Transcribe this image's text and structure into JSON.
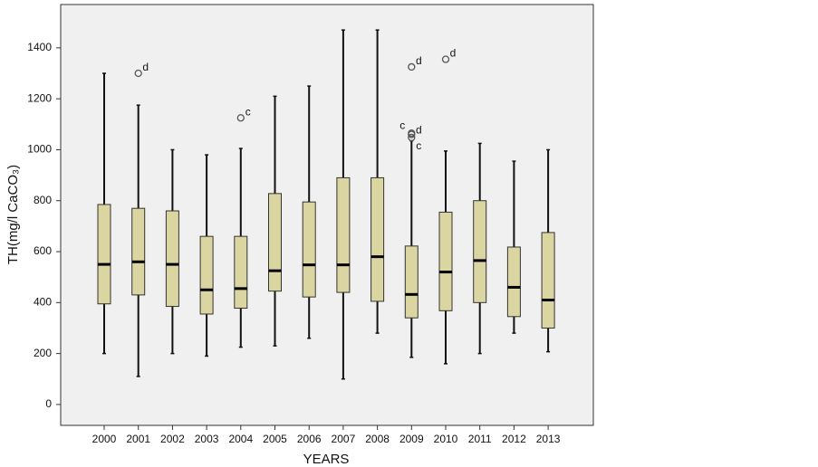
{
  "chart_data": {
    "type": "box",
    "x_label": "YEARS",
    "y_label": "TH(mg/l CaCO₃)",
    "categories": [
      "2000",
      "2001",
      "2002",
      "2003",
      "2004",
      "2005",
      "2006",
      "2007",
      "2008",
      "2009",
      "2010",
      "2011",
      "2012",
      "2013"
    ],
    "boxes": [
      {
        "whisker_low": 200,
        "q1": 395,
        "median": 550,
        "q3": 785,
        "whisker_high": 1300,
        "outliers": []
      },
      {
        "whisker_low": 110,
        "q1": 430,
        "median": 560,
        "q3": 770,
        "whisker_high": 1175,
        "outliers": [
          {
            "value": 1300,
            "label": "d"
          }
        ]
      },
      {
        "whisker_low": 200,
        "q1": 385,
        "median": 550,
        "q3": 760,
        "whisker_high": 1000,
        "outliers": []
      },
      {
        "whisker_low": 190,
        "q1": 355,
        "median": 450,
        "q3": 660,
        "whisker_high": 980,
        "outliers": []
      },
      {
        "whisker_low": 225,
        "q1": 378,
        "median": 455,
        "q3": 660,
        "whisker_high": 1005,
        "outliers": [
          {
            "value": 1125,
            "label": "c"
          }
        ]
      },
      {
        "whisker_low": 230,
        "q1": 445,
        "median": 525,
        "q3": 828,
        "whisker_high": 1210,
        "outliers": []
      },
      {
        "whisker_low": 260,
        "q1": 422,
        "median": 548,
        "q3": 795,
        "whisker_high": 1250,
        "outliers": []
      },
      {
        "whisker_low": 100,
        "q1": 440,
        "median": 548,
        "q3": 890,
        "whisker_high": 1470,
        "outliers": []
      },
      {
        "whisker_low": 280,
        "q1": 405,
        "median": 580,
        "q3": 890,
        "whisker_high": 1470,
        "outliers": []
      },
      {
        "whisker_low": 185,
        "q1": 340,
        "median": 432,
        "q3": 622,
        "whisker_high": 1035,
        "outliers": [
          {
            "value": 1325,
            "label": "d"
          },
          {
            "value": 1065,
            "label": "c"
          },
          {
            "value": 1060,
            "label": "d"
          },
          {
            "value": 1048,
            "label": "c"
          }
        ]
      },
      {
        "whisker_low": 160,
        "q1": 368,
        "median": 520,
        "q3": 755,
        "whisker_high": 995,
        "outliers": [
          {
            "value": 1355,
            "label": "d"
          }
        ]
      },
      {
        "whisker_low": 200,
        "q1": 400,
        "median": 565,
        "q3": 800,
        "whisker_high": 1025,
        "outliers": []
      },
      {
        "whisker_low": 280,
        "q1": 345,
        "median": 460,
        "q3": 618,
        "whisker_high": 955,
        "outliers": []
      },
      {
        "whisker_low": 207,
        "q1": 300,
        "median": 410,
        "q3": 675,
        "whisker_high": 1000,
        "outliers": []
      }
    ],
    "color": "#dbd5a2",
    "ylim": [
      -82,
      1570
    ],
    "yticks": [
      0,
      200,
      400,
      600,
      800,
      1000,
      1200,
      1400
    ]
  }
}
